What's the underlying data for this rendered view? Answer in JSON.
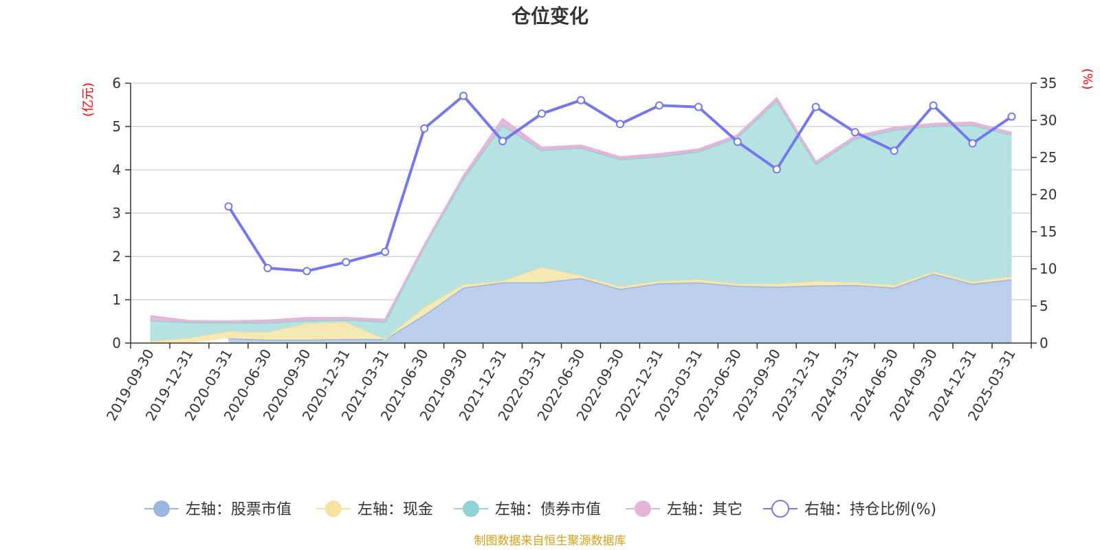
{
  "chart_data": {
    "type": "area",
    "title": "仓位变化",
    "left_unit": "(亿元)",
    "right_unit": "(%)",
    "left_ylim": [
      0,
      6
    ],
    "left_ticks": [
      "0",
      "1",
      "2",
      "3",
      "4",
      "5",
      "6"
    ],
    "right_ylim": [
      0,
      35
    ],
    "right_ticks": [
      "0",
      "5",
      "10",
      "15",
      "20",
      "25",
      "30",
      "35"
    ],
    "categories": [
      "2019-09-30",
      "2019-12-31",
      "2020-03-31",
      "2020-06-30",
      "2020-09-30",
      "2020-12-31",
      "2021-03-31",
      "2021-06-30",
      "2021-09-30",
      "2021-12-31",
      "2022-03-31",
      "2022-06-30",
      "2022-09-30",
      "2022-12-31",
      "2023-03-31",
      "2023-06-30",
      "2023-09-30",
      "2023-12-31",
      "2024-03-31",
      "2024-06-30",
      "2024-09-30",
      "2024-12-31",
      "2025-03-31"
    ],
    "series": [
      {
        "name": "左轴：股票市值",
        "axis": "left",
        "kind": "area",
        "color": "#9bb6e0",
        "fill": "#b7cbea",
        "values": [
          null,
          null,
          0.11,
          0.08,
          0.08,
          0.09,
          0.09,
          0.65,
          1.28,
          1.4,
          1.4,
          1.5,
          1.25,
          1.38,
          1.4,
          1.32,
          1.3,
          1.33,
          1.34,
          1.28,
          1.6,
          1.37,
          1.47
        ]
      },
      {
        "name": "左轴：现金",
        "axis": "left",
        "kind": "area",
        "color": "#f6e3a1",
        "fill": "#f7e8b0",
        "values": [
          0.04,
          0.12,
          0.16,
          0.17,
          0.38,
          0.39,
          0.0,
          0.18,
          0.07,
          0.04,
          0.35,
          0.06,
          0.06,
          0.05,
          0.07,
          0.05,
          0.07,
          0.1,
          0.06,
          0.06,
          0.05,
          0.05,
          0.07
        ]
      },
      {
        "name": "左轴：债券市值",
        "axis": "left",
        "kind": "area",
        "color": "#92d3d3",
        "fill": "#b3e0e0",
        "values": [
          0.48,
          0.36,
          0.2,
          0.22,
          0.06,
          0.06,
          0.4,
          1.4,
          2.45,
          3.6,
          2.7,
          2.95,
          2.93,
          2.88,
          2.95,
          3.38,
          4.23,
          2.7,
          3.32,
          3.58,
          3.36,
          3.61,
          3.27
        ]
      },
      {
        "name": "左轴：其它",
        "axis": "left",
        "kind": "area",
        "color": "#e6b4d8",
        "fill": "#e6b4d8",
        "values": [
          0.1,
          0.03,
          0.03,
          0.05,
          0.06,
          0.04,
          0.05,
          0.03,
          0.05,
          0.13,
          0.06,
          0.05,
          0.05,
          0.05,
          0.05,
          0.05,
          0.05,
          0.05,
          0.05,
          0.05,
          0.05,
          0.06,
          0.04
        ]
      },
      {
        "name": "右轴：持仓比例(%)",
        "axis": "right",
        "kind": "line",
        "color": "#7378ec",
        "values": [
          null,
          null,
          18.4,
          10.1,
          9.7,
          10.9,
          12.3,
          28.9,
          33.3,
          27.2,
          30.9,
          32.7,
          29.5,
          32.0,
          31.8,
          27.1,
          23.4,
          31.8,
          28.4,
          25.9,
          32.0,
          26.9,
          30.5
        ]
      }
    ],
    "grid": true,
    "legend_position": "bottom"
  },
  "source_note": "制图数据来自恒生聚源数据库"
}
